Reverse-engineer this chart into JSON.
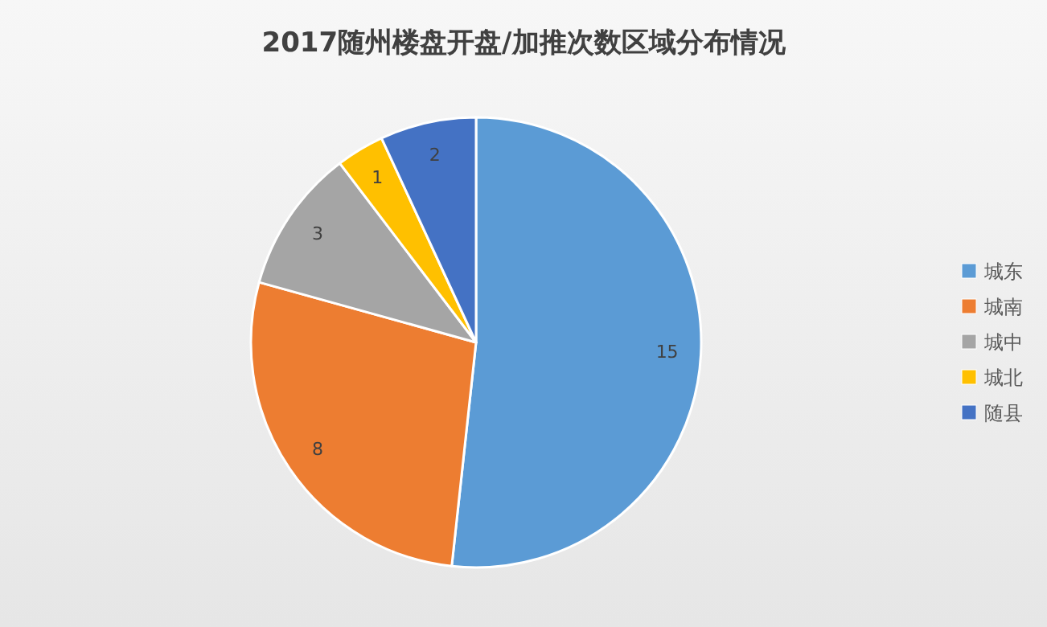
{
  "chart_data": {
    "type": "pie",
    "title": "2017随州楼盘开盘/加推次数区域分布情况",
    "categories": [
      "城东",
      "城南",
      "城中",
      "城北",
      "随县"
    ],
    "values": [
      15,
      8,
      3,
      1,
      2
    ],
    "colors": [
      "#5b9bd5",
      "#ed7d31",
      "#a5a5a5",
      "#ffc000",
      "#4472c4"
    ],
    "data_labels": true,
    "legend": "right"
  }
}
